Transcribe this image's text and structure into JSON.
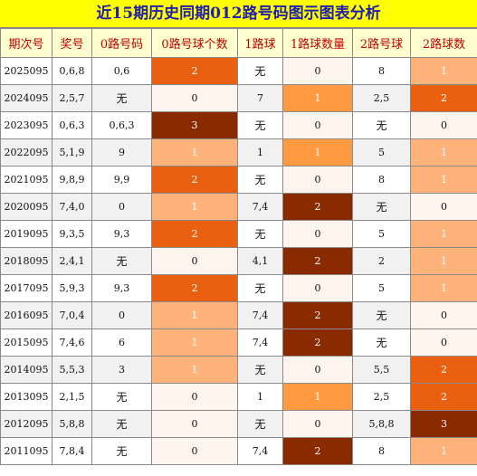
{
  "title": "近15期历史同期012路号码图示图表分析",
  "headers": [
    "期次号",
    "奖号",
    "0路号码",
    "0路号球个数",
    "1路球",
    "1路球数量",
    "2路号球",
    "2路球数"
  ],
  "level_colors": {
    "0": "#fff5ee",
    "1": "#ffb27a",
    "2": "#ea6010",
    "3": "#8a2a00"
  },
  "level_colors_1lu": {
    "0": "#fff5ee",
    "1": "#ff9a40",
    "2": "#8a2a00"
  },
  "rows": [
    {
      "period": "2025095",
      "draw": "0,6,8",
      "zero": "0,6",
      "zero_count": "2",
      "one": "无",
      "one_count": "0",
      "two": "8",
      "two_count": "1"
    },
    {
      "period": "2024095",
      "draw": "2,5,7",
      "zero": "无",
      "zero_count": "0",
      "one": "7",
      "one_count": "1",
      "two": "2,5",
      "two_count": "2"
    },
    {
      "period": "2023095",
      "draw": "0,6,3",
      "zero": "0,6,3",
      "zero_count": "3",
      "one": "无",
      "one_count": "0",
      "two": "无",
      "two_count": "0"
    },
    {
      "period": "2022095",
      "draw": "5,1,9",
      "zero": "9",
      "zero_count": "1",
      "one": "1",
      "one_count": "1",
      "two": "5",
      "two_count": "1"
    },
    {
      "period": "2021095",
      "draw": "9,8,9",
      "zero": "9,9",
      "zero_count": "2",
      "one": "无",
      "one_count": "0",
      "two": "8",
      "two_count": "1"
    },
    {
      "period": "2020095",
      "draw": "7,4,0",
      "zero": "0",
      "zero_count": "1",
      "one": "7,4",
      "one_count": "2",
      "two": "无",
      "two_count": "0"
    },
    {
      "period": "2019095",
      "draw": "9,3,5",
      "zero": "9,3",
      "zero_count": "2",
      "one": "无",
      "one_count": "0",
      "two": "5",
      "two_count": "1"
    },
    {
      "period": "2018095",
      "draw": "2,4,1",
      "zero": "无",
      "zero_count": "0",
      "one": "4,1",
      "one_count": "2",
      "two": "2",
      "two_count": "1"
    },
    {
      "period": "2017095",
      "draw": "5,9,3",
      "zero": "9,3",
      "zero_count": "2",
      "one": "无",
      "one_count": "0",
      "two": "5",
      "two_count": "1"
    },
    {
      "period": "2016095",
      "draw": "7,0,4",
      "zero": "0",
      "zero_count": "1",
      "one": "7,4",
      "one_count": "2",
      "two": "无",
      "two_count": "0"
    },
    {
      "period": "2015095",
      "draw": "7,4,6",
      "zero": "6",
      "zero_count": "1",
      "one": "7,4",
      "one_count": "2",
      "two": "无",
      "two_count": "0"
    },
    {
      "period": "2014095",
      "draw": "5,5,3",
      "zero": "3",
      "zero_count": "1",
      "one": "无",
      "one_count": "0",
      "two": "5,5",
      "two_count": "2"
    },
    {
      "period": "2013095",
      "draw": "2,1,5",
      "zero": "无",
      "zero_count": "0",
      "one": "1",
      "one_count": "1",
      "two": "2,5",
      "two_count": "2"
    },
    {
      "period": "2012095",
      "draw": "5,8,8",
      "zero": "无",
      "zero_count": "0",
      "one": "无",
      "one_count": "0",
      "two": "5,8,8",
      "two_count": "3"
    },
    {
      "period": "2011095",
      "draw": "7,8,4",
      "zero": "无",
      "zero_count": "0",
      "one": "7,4",
      "one_count": "2",
      "two": "8",
      "two_count": "1"
    }
  ]
}
